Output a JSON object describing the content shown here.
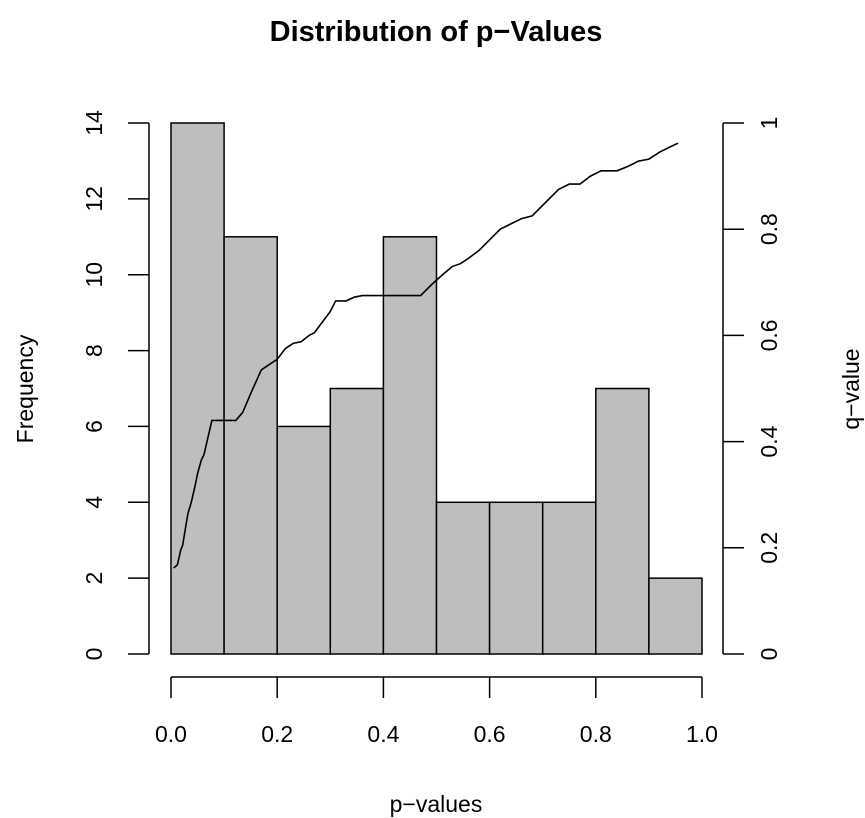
{
  "chart_data": {
    "type": "bar",
    "title": "Distribution of p−Values",
    "xlabel": "p−values",
    "ylabel": "Frequency",
    "y2label": "q−value",
    "xlim": [
      0.0,
      1.0
    ],
    "ylim": [
      0,
      14
    ],
    "y2lim": [
      0,
      1
    ],
    "grid": false,
    "x_ticks": [
      "0.0",
      "0.2",
      "0.4",
      "0.6",
      "0.8",
      "1.0"
    ],
    "y_ticks": [
      "0",
      "2",
      "4",
      "6",
      "8",
      "10",
      "12",
      "14"
    ],
    "y2_ticks": [
      "0",
      "0.2",
      "0.4",
      "0.6",
      "0.8",
      "1"
    ],
    "bins": [
      {
        "start": 0.0,
        "end": 0.1,
        "count": 14
      },
      {
        "start": 0.1,
        "end": 0.2,
        "count": 11
      },
      {
        "start": 0.2,
        "end": 0.3,
        "count": 6
      },
      {
        "start": 0.3,
        "end": 0.4,
        "count": 7
      },
      {
        "start": 0.4,
        "end": 0.5,
        "count": 11
      },
      {
        "start": 0.5,
        "end": 0.6,
        "count": 4
      },
      {
        "start": 0.6,
        "end": 0.7,
        "count": 4
      },
      {
        "start": 0.7,
        "end": 0.8,
        "count": 4
      },
      {
        "start": 0.8,
        "end": 0.9,
        "count": 7
      },
      {
        "start": 0.9,
        "end": 1.0,
        "count": 2
      }
    ],
    "q_value_line": {
      "x": [
        0.005,
        0.012,
        0.018,
        0.022,
        0.028,
        0.032,
        0.038,
        0.045,
        0.05,
        0.057,
        0.062,
        0.07,
        0.077,
        0.1,
        0.122,
        0.135,
        0.15,
        0.17,
        0.185,
        0.2,
        0.215,
        0.23,
        0.245,
        0.26,
        0.27,
        0.285,
        0.3,
        0.31,
        0.33,
        0.345,
        0.36,
        0.38,
        0.4,
        0.42,
        0.44,
        0.47,
        0.49,
        0.51,
        0.53,
        0.545,
        0.56,
        0.58,
        0.6,
        0.62,
        0.64,
        0.66,
        0.68,
        0.695,
        0.71,
        0.73,
        0.75,
        0.77,
        0.79,
        0.81,
        0.84,
        0.86,
        0.88,
        0.9,
        0.92,
        0.94,
        0.955
      ],
      "y": [
        0.162,
        0.168,
        0.195,
        0.205,
        0.242,
        0.265,
        0.285,
        0.315,
        0.34,
        0.365,
        0.375,
        0.41,
        0.44,
        0.44,
        0.44,
        0.455,
        0.49,
        0.535,
        0.545,
        0.555,
        0.575,
        0.585,
        0.588,
        0.6,
        0.605,
        0.625,
        0.645,
        0.665,
        0.665,
        0.672,
        0.675,
        0.675,
        0.675,
        0.675,
        0.675,
        0.675,
        0.695,
        0.713,
        0.73,
        0.735,
        0.745,
        0.76,
        0.78,
        0.8,
        0.81,
        0.82,
        0.825,
        0.84,
        0.855,
        0.875,
        0.885,
        0.885,
        0.9,
        0.91,
        0.91,
        0.918,
        0.928,
        0.932,
        0.945,
        0.955,
        0.962
      ]
    }
  }
}
